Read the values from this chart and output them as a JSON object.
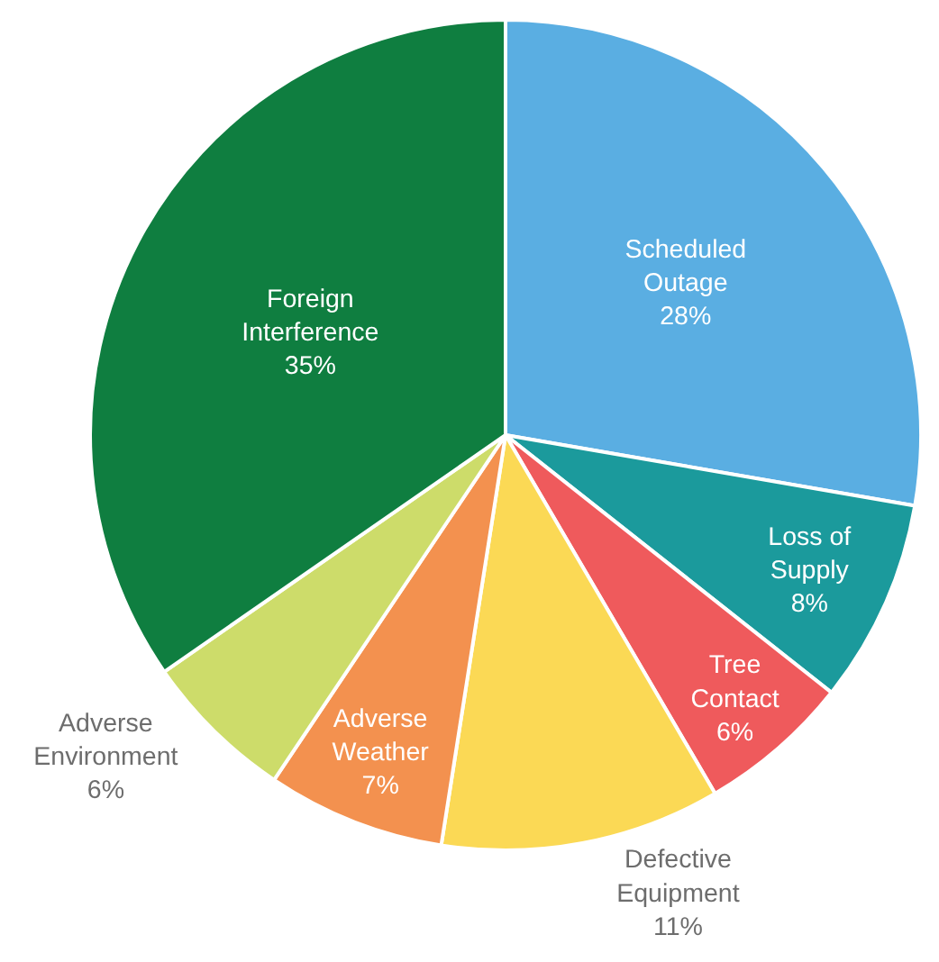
{
  "chart_data": {
    "type": "pie",
    "categories": [
      "Scheduled Outage",
      "Loss of Supply",
      "Tree Contact",
      "Defective Equipment",
      "Adverse Weather",
      "Adverse Environment",
      "Foreign Interference"
    ],
    "values": [
      28,
      8,
      6,
      11,
      7,
      6,
      35
    ],
    "value_labels": [
      "28%",
      "8%",
      "6%",
      "11%",
      "7%",
      "6%",
      "35%"
    ],
    "colors": [
      "#5aaee2",
      "#1b9a9c",
      "#ef5a5c",
      "#fbd955",
      "#f3914f",
      "#cddc6a",
      "#0f7e40"
    ],
    "legend": false
  }
}
